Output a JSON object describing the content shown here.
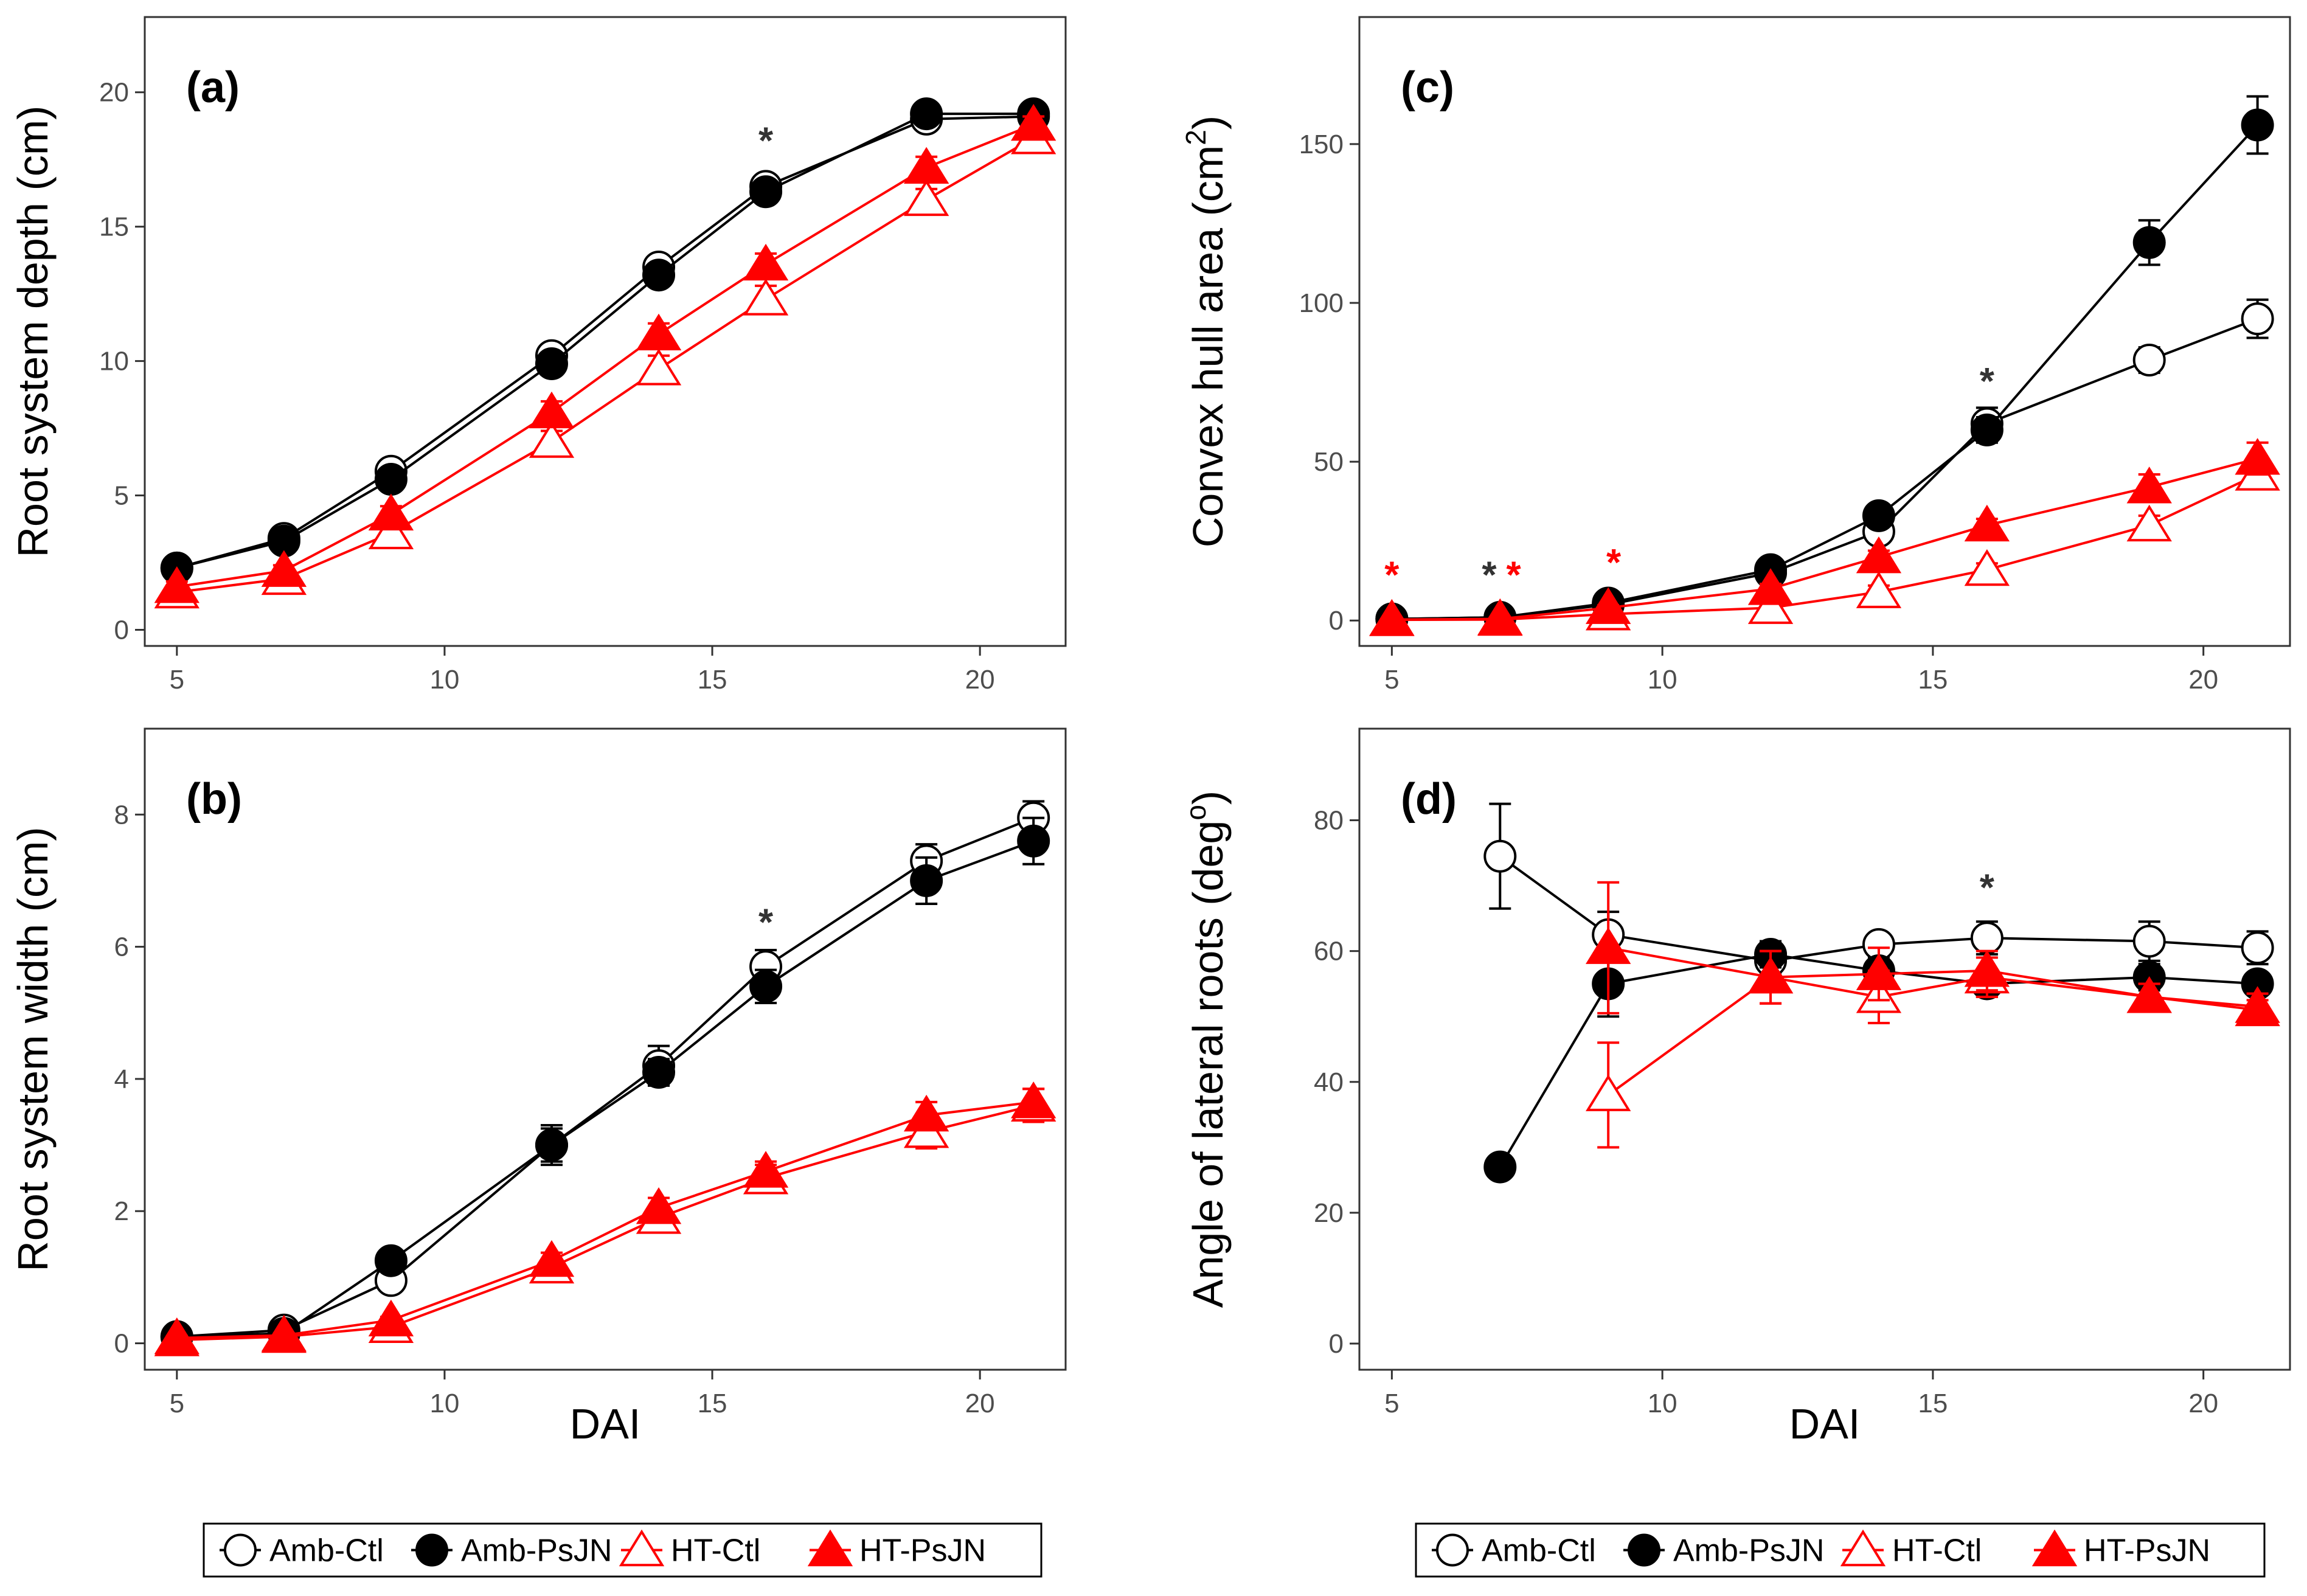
{
  "chart_data": [
    {
      "id": "a",
      "type": "line",
      "panel_label": "(a)",
      "ylabel": "Root system depth (cm)",
      "xlabel": "",
      "xlim": [
        4.4,
        21.6
      ],
      "ylim": [
        -0.6,
        22.8
      ],
      "xticks": [
        5,
        10,
        15,
        20
      ],
      "yticks": [
        0,
        5,
        10,
        15,
        20
      ],
      "grid": false,
      "series": [
        {
          "name": "Amb-Ctl",
          "color": "#000000",
          "marker": "circle-open",
          "x": [
            5,
            7,
            9,
            12,
            14,
            16,
            19,
            21
          ],
          "y": [
            2.3,
            3.4,
            5.9,
            10.2,
            13.5,
            16.5,
            19.0,
            19.1
          ],
          "err": [
            0.2,
            0.2,
            0.3,
            0.4,
            0.4,
            0.4,
            0.2,
            0.2
          ]
        },
        {
          "name": "Amb-PsJN",
          "color": "#000000",
          "marker": "circle-filled",
          "x": [
            5,
            7,
            9,
            12,
            14,
            16,
            19,
            21
          ],
          "y": [
            2.3,
            3.3,
            5.6,
            9.9,
            13.2,
            16.3,
            19.2,
            19.2
          ],
          "err": [
            0.2,
            0.2,
            0.3,
            0.4,
            0.4,
            0.3,
            0.2,
            0.2
          ]
        },
        {
          "name": "HT-Ctl",
          "color": "#ff0000",
          "marker": "triangle-open",
          "x": [
            5,
            7,
            9,
            12,
            14,
            16,
            19,
            21
          ],
          "y": [
            1.4,
            1.9,
            3.6,
            7.0,
            9.7,
            12.3,
            16.0,
            18.3
          ],
          "err": [
            0.2,
            0.2,
            0.3,
            0.4,
            0.5,
            0.5,
            0.4,
            0.3
          ]
        },
        {
          "name": "HT-PsJN",
          "color": "#ff0000",
          "marker": "triangle-filled",
          "x": [
            5,
            7,
            9,
            12,
            14,
            16,
            19,
            21
          ],
          "y": [
            1.6,
            2.2,
            4.3,
            8.1,
            11.0,
            13.6,
            17.2,
            18.8
          ],
          "err": [
            0.2,
            0.2,
            0.3,
            0.4,
            0.4,
            0.4,
            0.4,
            0.3
          ]
        }
      ],
      "annotations": [
        {
          "x": 16,
          "y": 18.4,
          "text": "*",
          "color": "#333333"
        }
      ]
    },
    {
      "id": "b",
      "type": "line",
      "panel_label": "(b)",
      "ylabel": "Root system width (cm)",
      "xlabel": "DAI",
      "xlim": [
        4.4,
        21.6
      ],
      "ylim": [
        -0.4,
        9.3
      ],
      "xticks": [
        5,
        10,
        15,
        20
      ],
      "yticks": [
        0,
        2,
        4,
        6,
        8
      ],
      "grid": false,
      "series": [
        {
          "name": "Amb-Ctl",
          "color": "#000000",
          "marker": "circle-open",
          "x": [
            5,
            7,
            9,
            12,
            14,
            16,
            19,
            21
          ],
          "y": [
            0.1,
            0.2,
            0.95,
            3.0,
            4.2,
            5.7,
            7.3,
            7.95
          ],
          "err": [
            0.05,
            0.05,
            0.15,
            0.25,
            0.3,
            0.25,
            0.25,
            0.25
          ]
        },
        {
          "name": "Amb-PsJN",
          "color": "#000000",
          "marker": "circle-filled",
          "x": [
            5,
            7,
            9,
            12,
            14,
            16,
            19,
            21
          ],
          "y": [
            0.1,
            0.15,
            1.25,
            3.0,
            4.1,
            5.4,
            7.0,
            7.6
          ],
          "err": [
            0.05,
            0.05,
            0.15,
            0.3,
            0.2,
            0.25,
            0.35,
            0.35
          ]
        },
        {
          "name": "HT-Ctl",
          "color": "#ff0000",
          "marker": "triangle-open",
          "x": [
            5,
            7,
            9,
            12,
            14,
            16,
            19,
            21
          ],
          "y": [
            0.05,
            0.1,
            0.25,
            1.15,
            1.9,
            2.5,
            3.2,
            3.6
          ],
          "err": [
            0.03,
            0.03,
            0.05,
            0.12,
            0.15,
            0.2,
            0.25,
            0.25
          ]
        },
        {
          "name": "HT-PsJN",
          "color": "#ff0000",
          "marker": "triangle-filled",
          "x": [
            5,
            7,
            9,
            12,
            14,
            16,
            19,
            21
          ],
          "y": [
            0.08,
            0.12,
            0.35,
            1.25,
            2.05,
            2.6,
            3.45,
            3.65
          ],
          "err": [
            0.03,
            0.03,
            0.05,
            0.12,
            0.15,
            0.15,
            0.2,
            0.2
          ]
        }
      ],
      "annotations": [
        {
          "x": 16,
          "y": 6.45,
          "text": "*",
          "color": "#333333"
        }
      ]
    },
    {
      "id": "c",
      "type": "line",
      "panel_label": "(c)",
      "ylabel": "Convex hull area (cm",
      "ylabel_superscript": "2",
      "ylabel_suffix": ")",
      "xlabel": "",
      "xlim": [
        4.4,
        21.6
      ],
      "ylim": [
        -8,
        190
      ],
      "xticks": [
        5,
        10,
        15,
        20
      ],
      "yticks": [
        0,
        50,
        100,
        150
      ],
      "grid": false,
      "series": [
        {
          "name": "Amb-Ctl",
          "color": "#000000",
          "marker": "circle-open",
          "x": [
            5,
            7,
            9,
            12,
            14,
            16,
            19,
            21
          ],
          "y": [
            0.5,
            1,
            5,
            15,
            28,
            62,
            82,
            95
          ],
          "err": [
            0.3,
            0.5,
            1,
            2,
            3,
            5,
            4,
            6
          ]
        },
        {
          "name": "Amb-PsJN",
          "color": "#000000",
          "marker": "circle-filled",
          "x": [
            5,
            7,
            9,
            12,
            14,
            16,
            19,
            21
          ],
          "y": [
            0.5,
            1,
            5.5,
            16,
            33,
            60,
            119,
            156
          ],
          "err": [
            0.3,
            0.5,
            1,
            2,
            3,
            4,
            7,
            9
          ]
        },
        {
          "name": "HT-Ctl",
          "color": "#ff0000",
          "marker": "triangle-open",
          "x": [
            5,
            7,
            9,
            12,
            14,
            16,
            19,
            21
          ],
          "y": [
            0.2,
            0.3,
            2,
            4,
            9,
            16,
            30,
            46
          ],
          "err": [
            0.1,
            0.1,
            0.5,
            1,
            2,
            2,
            3,
            4
          ]
        },
        {
          "name": "HT-PsJN",
          "color": "#ff0000",
          "marker": "triangle-filled",
          "x": [
            5,
            7,
            9,
            12,
            14,
            16,
            19,
            21
          ],
          "y": [
            0.3,
            0.5,
            4,
            10,
            20,
            30,
            42,
            51
          ],
          "err": [
            0.1,
            0.2,
            0.8,
            1.5,
            2,
            2,
            4,
            5
          ]
        }
      ],
      "annotations": [
        {
          "x": 5,
          "y": 16,
          "text": "*",
          "color": "#ff0000"
        },
        {
          "x": 6.8,
          "y": 16,
          "text": "*",
          "color": "#333333"
        },
        {
          "x": 7.25,
          "y": 16,
          "text": "*",
          "color": "#ff0000"
        },
        {
          "x": 9.1,
          "y": 20,
          "text": "*",
          "color": "#ff0000"
        },
        {
          "x": 16,
          "y": 77,
          "text": "*",
          "color": "#333333"
        }
      ]
    },
    {
      "id": "d",
      "type": "line",
      "panel_label": "(d)",
      "ylabel": "Angle of lateral roots (deg",
      "ylabel_superscript": "o",
      "ylabel_suffix": ")",
      "xlabel": "DAI",
      "xlim": [
        4.4,
        21.6
      ],
      "ylim": [
        -4,
        94
      ],
      "xticks": [
        5,
        10,
        15,
        20
      ],
      "yticks": [
        0,
        20,
        40,
        60,
        80
      ],
      "grid": false,
      "series": [
        {
          "name": "Amb-Ctl",
          "color": "#000000",
          "marker": "circle-open",
          "x": [
            7,
            9,
            12,
            14,
            16,
            19,
            21
          ],
          "y": [
            74.5,
            62.5,
            58.5,
            61,
            62,
            61.5,
            60.5
          ],
          "err": [
            8,
            3.5,
            2,
            1.5,
            2.5,
            3,
            2.5
          ]
        },
        {
          "name": "Amb-PsJN",
          "color": "#000000",
          "marker": "circle-filled",
          "x": [
            7,
            9,
            12,
            14,
            16,
            19,
            21
          ],
          "y": [
            27,
            55,
            59.5,
            57,
            55,
            56,
            55
          ],
          "err": [
            0.8,
            5,
            2,
            2,
            2,
            2,
            1.5
          ]
        },
        {
          "name": "HT-Ctl",
          "color": "#ff0000",
          "marker": "triangle-open",
          "x": [
            9,
            12,
            14,
            16,
            19,
            21
          ],
          "y": [
            38,
            56,
            53,
            56,
            53,
            51.5
          ],
          "err": [
            8,
            4,
            4,
            3,
            2,
            2
          ]
        },
        {
          "name": "HT-PsJN",
          "color": "#ff0000",
          "marker": "triangle-filled",
          "x": [
            9,
            12,
            14,
            16,
            19,
            21
          ],
          "y": [
            60.5,
            56,
            56.5,
            57,
            53,
            51
          ],
          "err": [
            10,
            4,
            4,
            3,
            2,
            1.5
          ]
        }
      ],
      "annotations": [
        {
          "x": 16,
          "y": 70.5,
          "text": "*",
          "color": "#333333"
        }
      ]
    }
  ],
  "legend": {
    "placement": "bottom",
    "entries": [
      {
        "label": "Amb-Ctl",
        "color": "#000000",
        "marker": "circle-open"
      },
      {
        "label": "Amb-PsJN",
        "color": "#000000",
        "marker": "circle-filled"
      },
      {
        "label": "HT-Ctl",
        "color": "#ff0000",
        "marker": "triangle-open"
      },
      {
        "label": "HT-PsJN",
        "color": "#ff0000",
        "marker": "triangle-filled"
      }
    ]
  }
}
